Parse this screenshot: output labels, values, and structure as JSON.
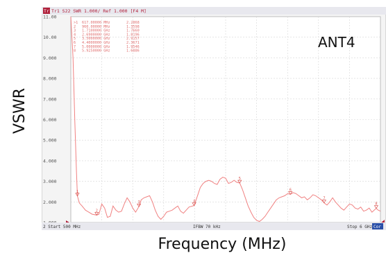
{
  "chart_data": {
    "type": "line",
    "title": "",
    "xlabel": "Frequency (MHz)",
    "ylabel": "VSWR",
    "xlim": [
      500,
      6000
    ],
    "ylim": [
      1.0,
      11.0
    ],
    "yticks": [
      "11.00",
      "10.00",
      "9.000",
      "8.000",
      "7.000",
      "6.000",
      "5.000",
      "4.000",
      "3.000",
      "2.000",
      "1.000"
    ],
    "header": "Tr1 S22 SWR 1.000/ Ref 1.000 [F4 M]",
    "footer_left": "2 Start 500 MHz",
    "footer_center": "IFBW 70 kHz",
    "footer_right": "Stop 6 GHz",
    "footer_badge": "Cor",
    "annotation": "ANT4",
    "color": "#f08080",
    "grid": true,
    "markers": [
      {
        "id": ">1",
        "freq_label": "617.00000 MHz",
        "x": 617,
        "y": 2.2868
      },
      {
        "id": "2",
        "freq_label": "960.00000 MHz",
        "x": 960,
        "y": 1.3598
      },
      {
        "id": "3",
        "freq_label": "1.7100000 GHz",
        "x": 1710,
        "y": 1.766
      },
      {
        "id": "4",
        "freq_label": "2.6900000 GHz",
        "x": 2690,
        "y": 1.8196
      },
      {
        "id": "5",
        "freq_label": "3.5000000 GHz",
        "x": 3500,
        "y": 2.9157
      },
      {
        "id": "6",
        "freq_label": "4.4000000 GHz",
        "x": 4400,
        "y": 2.3671
      },
      {
        "id": "7",
        "freq_label": "5.0000000 GHz",
        "x": 5000,
        "y": 1.9546
      },
      {
        "id": "8",
        "freq_label": "5.9250000 GHz",
        "x": 5925,
        "y": 1.6886
      }
    ],
    "x": [
      500,
      540,
      570,
      600,
      617,
      650,
      700,
      760,
      820,
      880,
      960,
      1000,
      1050,
      1100,
      1150,
      1200,
      1250,
      1300,
      1350,
      1400,
      1450,
      1500,
      1550,
      1600,
      1650,
      1710,
      1750,
      1800,
      1850,
      1900,
      1950,
      2000,
      2050,
      2100,
      2150,
      2200,
      2250,
      2300,
      2350,
      2400,
      2450,
      2500,
      2550,
      2600,
      2690,
      2750,
      2800,
      2850,
      2900,
      2950,
      3000,
      3050,
      3100,
      3150,
      3200,
      3250,
      3300,
      3350,
      3400,
      3450,
      3500,
      3550,
      3600,
      3650,
      3700,
      3750,
      3800,
      3850,
      3900,
      3950,
      4000,
      4050,
      4100,
      4150,
      4200,
      4250,
      4300,
      4350,
      4400,
      4450,
      4500,
      4550,
      4600,
      4650,
      4700,
      4750,
      4800,
      4850,
      4900,
      4950,
      5000,
      5050,
      5100,
      5150,
      5200,
      5250,
      5300,
      5350,
      5400,
      5450,
      5500,
      5550,
      5600,
      5650,
      5700,
      5750,
      5800,
      5850,
      5925,
      5960,
      6000
    ],
    "values": [
      11.0,
      9.0,
      6.0,
      3.5,
      2.29,
      1.95,
      1.8,
      1.6,
      1.5,
      1.4,
      1.36,
      1.4,
      1.9,
      1.7,
      1.25,
      1.3,
      1.8,
      1.6,
      1.5,
      1.55,
      1.9,
      2.2,
      2.0,
      1.7,
      1.5,
      1.77,
      2.1,
      2.2,
      2.25,
      2.3,
      2.0,
      1.6,
      1.3,
      1.15,
      1.3,
      1.5,
      1.55,
      1.6,
      1.7,
      1.8,
      1.55,
      1.45,
      1.6,
      1.75,
      1.82,
      2.3,
      2.7,
      2.9,
      3.0,
      3.05,
      3.0,
      2.9,
      2.85,
      3.1,
      3.2,
      3.15,
      2.9,
      2.95,
      3.05,
      2.95,
      2.92,
      2.6,
      2.2,
      1.8,
      1.5,
      1.25,
      1.1,
      1.05,
      1.15,
      1.3,
      1.5,
      1.7,
      1.9,
      2.1,
      2.2,
      2.25,
      2.3,
      2.4,
      2.37,
      2.45,
      2.4,
      2.3,
      2.2,
      2.25,
      2.1,
      2.2,
      2.35,
      2.3,
      2.2,
      2.1,
      1.95,
      1.85,
      2.0,
      2.2,
      2.0,
      1.85,
      1.7,
      1.6,
      1.75,
      1.9,
      1.85,
      1.7,
      1.65,
      1.75,
      1.55,
      1.6,
      1.7,
      1.5,
      1.69,
      1.6,
      1.55
    ]
  }
}
